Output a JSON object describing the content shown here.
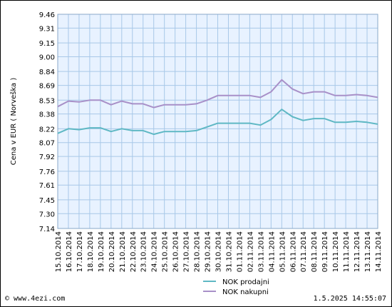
{
  "footer": {
    "source": "© www.4ezi.com",
    "timestamp": "1.5.2025 14:55:07"
  },
  "colors": {
    "plot_bg": "#e8f2ff",
    "grid": "#a8c8e8",
    "prodajni": "#5fb8c4",
    "nakupni": "#a890c8"
  },
  "chart_data": {
    "type": "line",
    "ylabel": "Cena v EUR ( Norveška )",
    "xlabel": "",
    "ylim": [
      7.14,
      9.46
    ],
    "yticks": [
      "9.46",
      "9.31",
      "9.15",
      "9.00",
      "8.84",
      "8.69",
      "8.53",
      "8.38",
      "8.22",
      "8.07",
      "7.92",
      "7.76",
      "7.61",
      "7.45",
      "7.30",
      "7.14"
    ],
    "categories": [
      "15.10.2014",
      "16.10.2014",
      "17.10.2014",
      "18.10.2014",
      "19.10.2014",
      "20.10.2014",
      "21.10.2014",
      "22.10.2014",
      "23.10.2014",
      "24.10.2014",
      "25.10.2014",
      "26.10.2014",
      "27.10.2014",
      "28.10.2014",
      "29.10.2014",
      "30.10.2014",
      "31.10.2014",
      "01.11.2014",
      "02.11.2014",
      "03.11.2014",
      "04.11.2014",
      "05.11.2014",
      "06.11.2014",
      "07.11.2014",
      "08.11.2014",
      "09.11.2014",
      "10.11.2014",
      "11.11.2014",
      "12.11.2014",
      "13.11.2014",
      "14.11.2014"
    ],
    "series": [
      {
        "name": "NOK prodajni",
        "color": "#5fb8c4",
        "values": [
          8.17,
          8.22,
          8.21,
          8.23,
          8.23,
          8.19,
          8.22,
          8.2,
          8.2,
          8.16,
          8.19,
          8.19,
          8.19,
          8.2,
          8.24,
          8.28,
          8.28,
          8.28,
          8.28,
          8.26,
          8.32,
          8.43,
          8.35,
          8.31,
          8.33,
          8.33,
          8.29,
          8.29,
          8.3,
          8.29,
          8.27
        ]
      },
      {
        "name": "NOK nakupni",
        "color": "#a890c8",
        "values": [
          8.46,
          8.52,
          8.51,
          8.53,
          8.53,
          8.48,
          8.52,
          8.49,
          8.49,
          8.45,
          8.48,
          8.48,
          8.48,
          8.49,
          8.53,
          8.58,
          8.58,
          8.58,
          8.58,
          8.56,
          8.62,
          8.75,
          8.65,
          8.6,
          8.62,
          8.62,
          8.58,
          8.58,
          8.59,
          8.58,
          8.56
        ]
      }
    ],
    "grid": true,
    "legend_position": "bottom-center"
  }
}
